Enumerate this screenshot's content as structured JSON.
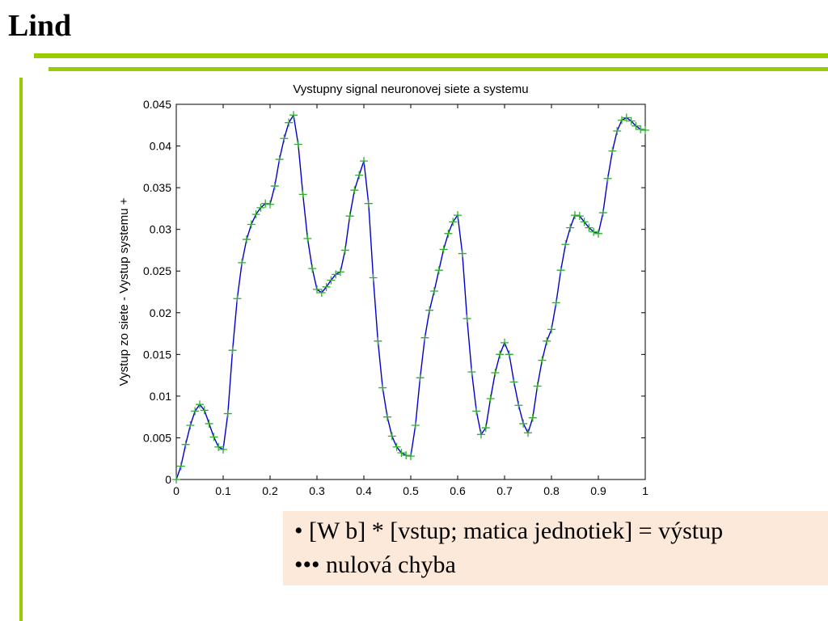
{
  "slide": {
    "title": "Lind",
    "accent_color": "#99cc00",
    "notes": [
      {
        "bullet": "•",
        "text": "[W b] * [vstup; matica jednotiek] = výstup"
      },
      {
        "bullet": "•••",
        "text": "nulová chyba"
      }
    ],
    "note_background": "#fde9d9"
  },
  "chart_data": {
    "type": "line",
    "title": "Vystupny signal neuronovej siete a systemu",
    "xlabel": "",
    "ylabel": "Vystup zo siete - Vystup systemu +",
    "xlim": [
      0,
      1
    ],
    "ylim": [
      0,
      0.045
    ],
    "xticks": [
      0,
      0.1,
      0.2,
      0.3,
      0.4,
      0.5,
      0.6,
      0.7,
      0.8,
      0.9,
      1
    ],
    "xtick_labels": [
      "0",
      "0.1",
      "0.2",
      "0.3",
      "0.4",
      "0.5",
      "0.6",
      "0.7",
      "0.8",
      "0.9",
      "1"
    ],
    "yticks": [
      0,
      0.005,
      0.01,
      0.015,
      0.02,
      0.025,
      0.03,
      0.035,
      0.04,
      0.045
    ],
    "ytick_labels": [
      "0",
      "0.005",
      "0.01",
      "0.015",
      "0.02",
      "0.025",
      "0.03",
      "0.035",
      "0.04",
      "0.045"
    ],
    "grid": false,
    "x": [
      0,
      0.01,
      0.02,
      0.03,
      0.04,
      0.05,
      0.06,
      0.07,
      0.08,
      0.09,
      0.1,
      0.11,
      0.12,
      0.13,
      0.14,
      0.15,
      0.16,
      0.17,
      0.18,
      0.19,
      0.2,
      0.21,
      0.22,
      0.23,
      0.24,
      0.25,
      0.26,
      0.27,
      0.28,
      0.29,
      0.3,
      0.31,
      0.32,
      0.33,
      0.34,
      0.35,
      0.36,
      0.37,
      0.38,
      0.39,
      0.4,
      0.41,
      0.42,
      0.43,
      0.44,
      0.45,
      0.46,
      0.47,
      0.48,
      0.49,
      0.5,
      0.51,
      0.52,
      0.53,
      0.54,
      0.55,
      0.56,
      0.57,
      0.58,
      0.59,
      0.6,
      0.61,
      0.62,
      0.63,
      0.64,
      0.65,
      0.66,
      0.67,
      0.68,
      0.69,
      0.7,
      0.71,
      0.72,
      0.73,
      0.74,
      0.75,
      0.76,
      0.77,
      0.78,
      0.79,
      0.8,
      0.81,
      0.82,
      0.83,
      0.84,
      0.85,
      0.86,
      0.87,
      0.88,
      0.89,
      0.9,
      0.91,
      0.92,
      0.93,
      0.94,
      0.95,
      0.96,
      0.97,
      0.98,
      0.99,
      1
    ],
    "series": [
      {
        "color": "#0000cc",
        "marker": "none",
        "values": [
          0,
          0.0016,
          0.0042,
          0.0065,
          0.0082,
          0.009,
          0.0083,
          0.0067,
          0.0051,
          0.0039,
          0.0036,
          0.0079,
          0.0155,
          0.0217,
          0.026,
          0.0288,
          0.0306,
          0.0318,
          0.0326,
          0.0331,
          0.033,
          0.0352,
          0.0384,
          0.0409,
          0.0428,
          0.0437,
          0.0402,
          0.0342,
          0.0289,
          0.0253,
          0.0228,
          0.0224,
          0.0231,
          0.0239,
          0.0246,
          0.0249,
          0.0275,
          0.0316,
          0.0347,
          0.0365,
          0.0382,
          0.0331,
          0.0242,
          0.0166,
          0.011,
          0.0075,
          0.0052,
          0.0039,
          0.0032,
          0.0029,
          0.0028,
          0.0065,
          0.0122,
          0.017,
          0.0203,
          0.0226,
          0.0251,
          0.0276,
          0.0295,
          0.0309,
          0.0317,
          0.0271,
          0.0193,
          0.0129,
          0.0082,
          0.0054,
          0.0062,
          0.0097,
          0.0128,
          0.015,
          0.0164,
          0.015,
          0.0117,
          0.0089,
          0.0067,
          0.0056,
          0.0074,
          0.0112,
          0.0143,
          0.0166,
          0.018,
          0.0212,
          0.0251,
          0.0282,
          0.0302,
          0.0317,
          0.0316,
          0.0309,
          0.0302,
          0.0297,
          0.0295,
          0.032,
          0.0361,
          0.0394,
          0.0418,
          0.0431,
          0.0434,
          0.043,
          0.0424,
          0.042,
          0.0419
        ]
      },
      {
        "color": "#33aa33",
        "marker": "+",
        "values": [
          0,
          0.0016,
          0.0042,
          0.0065,
          0.0082,
          0.009,
          0.0083,
          0.0067,
          0.0051,
          0.0039,
          0.0036,
          0.0079,
          0.0155,
          0.0217,
          0.026,
          0.0288,
          0.0306,
          0.0318,
          0.0326,
          0.0331,
          0.033,
          0.0352,
          0.0384,
          0.0409,
          0.0428,
          0.0437,
          0.0402,
          0.0342,
          0.0289,
          0.0253,
          0.0228,
          0.0224,
          0.0231,
          0.0239,
          0.0246,
          0.0249,
          0.0275,
          0.0316,
          0.0347,
          0.0365,
          0.0382,
          0.0331,
          0.0242,
          0.0166,
          0.011,
          0.0075,
          0.0052,
          0.0039,
          0.0032,
          0.0029,
          0.0028,
          0.0065,
          0.0122,
          0.017,
          0.0203,
          0.0226,
          0.0251,
          0.0276,
          0.0295,
          0.0309,
          0.0317,
          0.0271,
          0.0193,
          0.0129,
          0.0082,
          0.0054,
          0.0062,
          0.0097,
          0.0128,
          0.015,
          0.0164,
          0.015,
          0.0117,
          0.0089,
          0.0067,
          0.0056,
          0.0074,
          0.0112,
          0.0143,
          0.0166,
          0.018,
          0.0212,
          0.0251,
          0.0282,
          0.0302,
          0.0317,
          0.0316,
          0.0309,
          0.0302,
          0.0297,
          0.0295,
          0.032,
          0.0361,
          0.0394,
          0.0418,
          0.0431,
          0.0434,
          0.043,
          0.0424,
          0.042,
          0.0419
        ]
      }
    ]
  }
}
